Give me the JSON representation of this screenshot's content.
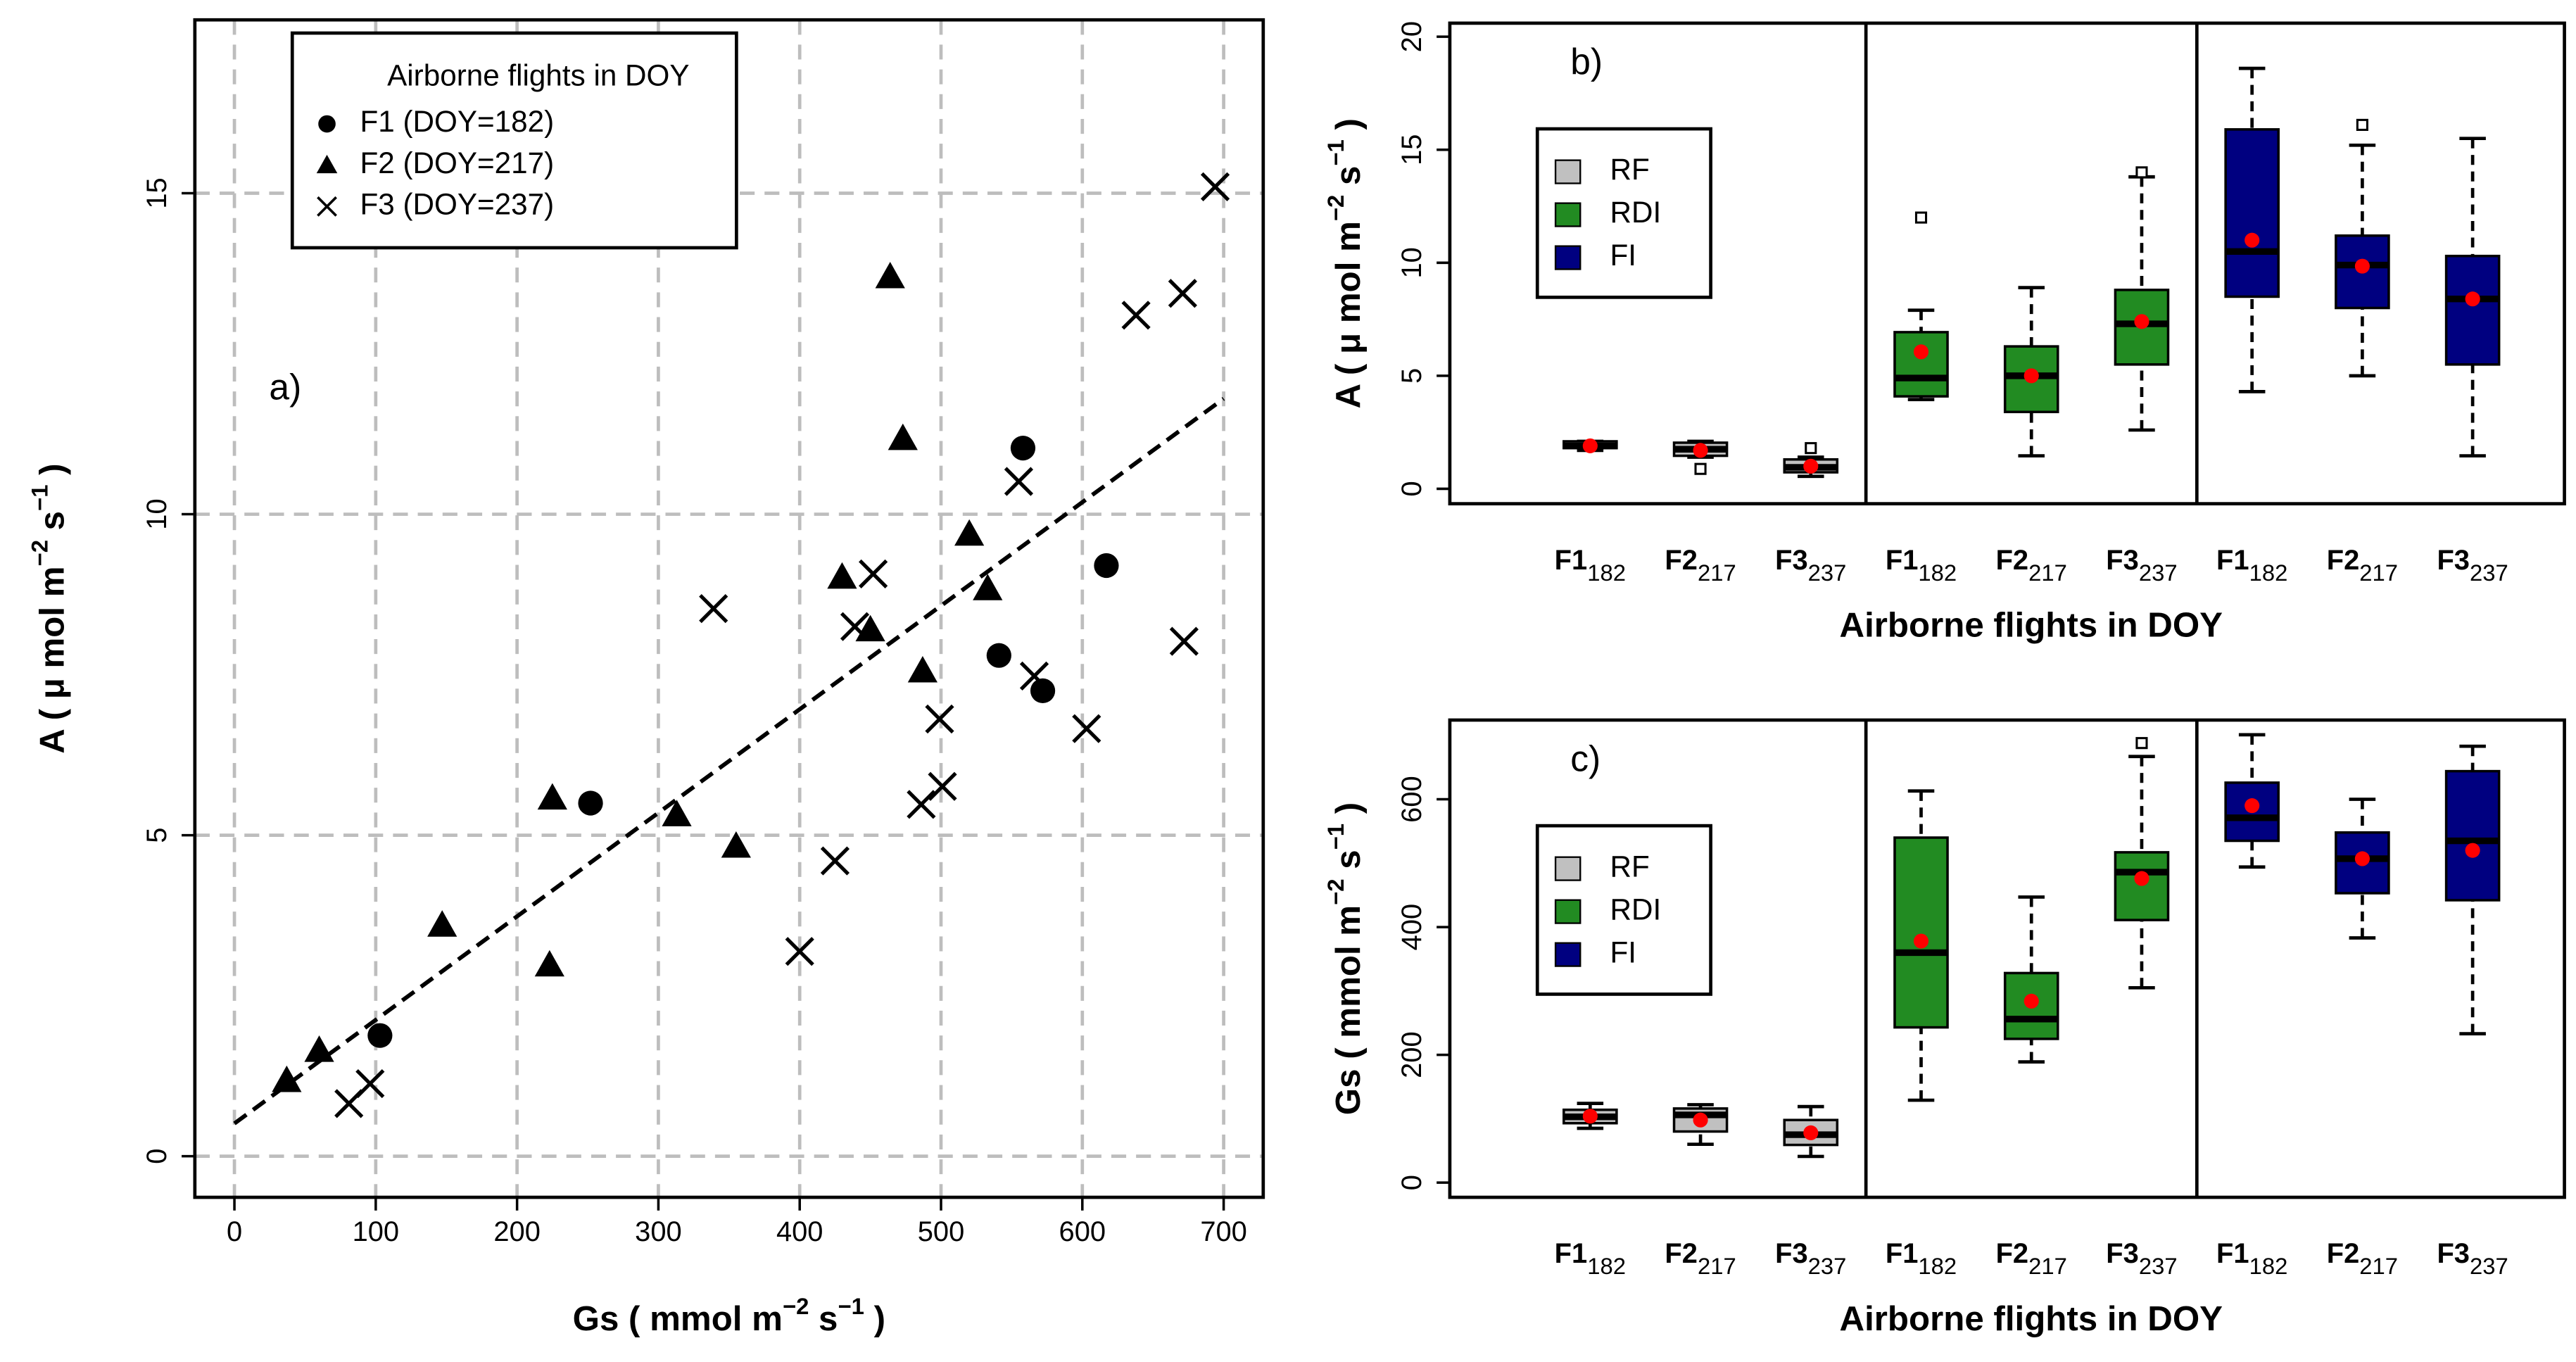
{
  "chart_data": [
    {
      "type": "scatter",
      "panel_label": "a)",
      "xlabel": [
        "Gs  ( mmol m",
        "−2",
        " s",
        "−1",
        " )"
      ],
      "ylabel": [
        "A  ( μ mol m",
        "−2",
        " s",
        "−1",
        " )"
      ],
      "xlim": [
        -28,
        728
      ],
      "ylim": [
        -0.64,
        17.7
      ],
      "xticks": [
        0,
        100,
        200,
        300,
        400,
        500,
        600,
        700
      ],
      "yticks": [
        0,
        5,
        10,
        15
      ],
      "grid": true,
      "color": "#000000",
      "legend": {
        "title": "Airborne flights in DOY",
        "corner": "upper left"
      },
      "series": [
        {
          "name": "F1 (DOY=182)",
          "marker": "circle",
          "x": [
            103,
            252,
            558,
            617,
            541,
            572
          ],
          "values": [
            1.88,
            5.5,
            11.03,
            9.2,
            7.8,
            7.25
          ]
        },
        {
          "name": "F2 (DOY=217)",
          "marker": "triangle",
          "x": [
            37,
            60,
            147,
            223,
            225,
            313,
            355,
            430,
            450,
            473,
            464,
            487,
            520,
            533
          ],
          "values": [
            1.18,
            1.65,
            3.6,
            2.98,
            5.58,
            5.32,
            4.83,
            9.02,
            8.2,
            11.18,
            13.7,
            7.56,
            9.69,
            8.84
          ]
        },
        {
          "name": "F3 (DOY=237)",
          "marker": "cross",
          "x": [
            81,
            96,
            339,
            452,
            439,
            400,
            425,
            486,
            501,
            499,
            555,
            566,
            603,
            638,
            671,
            672,
            694
          ],
          "values": [
            0.82,
            1.13,
            8.53,
            9.07,
            8.25,
            3.19,
            4.6,
            5.48,
            5.76,
            6.81,
            10.51,
            7.48,
            6.66,
            13.1,
            13.44,
            8.02,
            15.1
          ]
        }
      ],
      "trend_line": {
        "x": [
          0,
          700
        ],
        "values": [
          0.51,
          11.8
        ]
      }
    },
    {
      "type": "box",
      "panel_label": "b)",
      "xlabel": [
        "Airborne flights in DOY"
      ],
      "ylabel": [
        "A  ( μ mol m",
        "−2",
        " s",
        "−1",
        " )"
      ],
      "ylim": [
        -0.66,
        20.6
      ],
      "yticks": [
        0,
        5,
        10,
        15,
        20
      ],
      "categories": [
        "F1",
        "F2",
        "F3"
      ],
      "category_subs": [
        "182",
        "217",
        "237"
      ],
      "legend": {
        "corner": "upper left"
      },
      "series": [
        {
          "name": "RF",
          "color": "#c0c0c0",
          "boxes": [
            {
              "min": 1.7,
              "q1": 1.8,
              "median": 1.9,
              "q3": 2.1,
              "max": 2.1,
              "mean": 1.9,
              "outliers": []
            },
            {
              "min": 1.4,
              "q1": 1.46,
              "median": 1.75,
              "q3": 2.04,
              "max": 2.1,
              "mean": 1.7,
              "outliers": [
                0.88
              ]
            },
            {
              "min": 0.55,
              "q1": 0.73,
              "median": 0.95,
              "q3": 1.3,
              "max": 1.4,
              "mean": 1.0,
              "outliers": [
                1.8
              ]
            }
          ]
        },
        {
          "name": "RDI",
          "color": "#228b22",
          "boxes": [
            {
              "min": 3.95,
              "q1": 4.09,
              "median": 4.9,
              "q3": 6.93,
              "max": 7.9,
              "mean": 6.06,
              "outliers": [
                12.0
              ]
            },
            {
              "min": 1.46,
              "q1": 3.4,
              "median": 5.0,
              "q3": 6.3,
              "max": 8.9,
              "mean": 5.0,
              "outliers": []
            },
            {
              "min": 2.6,
              "q1": 5.5,
              "median": 7.3,
              "q3": 8.8,
              "max": 13.8,
              "mean": 7.4,
              "outliers": [
                14.0
              ]
            }
          ]
        },
        {
          "name": "FI",
          "color": "#000080",
          "boxes": [
            {
              "min": 4.3,
              "q1": 8.5,
              "median": 10.5,
              "q3": 15.9,
              "max": 18.6,
              "mean": 11.0,
              "outliers": []
            },
            {
              "min": 5.0,
              "q1": 8.0,
              "median": 9.9,
              "q3": 11.2,
              "max": 15.2,
              "mean": 9.85,
              "outliers": [
                16.1
              ]
            },
            {
              "min": 1.46,
              "q1": 5.5,
              "median": 8.4,
              "q3": 10.3,
              "max": 15.5,
              "mean": 8.4,
              "outliers": []
            }
          ]
        }
      ]
    },
    {
      "type": "box",
      "panel_label": "c)",
      "xlabel": [
        "Airborne flights in DOY"
      ],
      "ylabel": [
        "Gs  ( mmol m",
        "−2",
        " s",
        "−1",
        " )"
      ],
      "ylim": [
        -23,
        724
      ],
      "yticks": [
        0,
        200,
        400,
        600
      ],
      "categories": [
        "F1",
        "F2",
        "F3"
      ],
      "category_subs": [
        "182",
        "217",
        "237"
      ],
      "legend": {
        "corner": "upper left"
      },
      "series": [
        {
          "name": "RF",
          "color": "#c0c0c0",
          "boxes": [
            {
              "min": 85,
              "q1": 93,
              "median": 103,
              "q3": 114,
              "max": 124,
              "mean": 104,
              "outliers": []
            },
            {
              "min": 60,
              "q1": 80,
              "median": 106,
              "q3": 116,
              "max": 122,
              "mean": 98,
              "outliers": []
            },
            {
              "min": 41,
              "q1": 59,
              "median": 75,
              "q3": 98,
              "max": 119,
              "mean": 78,
              "outliers": []
            }
          ]
        },
        {
          "name": "RDI",
          "color": "#228b22",
          "boxes": [
            {
              "min": 129,
              "q1": 243,
              "median": 360,
              "q3": 540,
              "max": 613,
              "mean": 378,
              "outliers": []
            },
            {
              "min": 189,
              "q1": 225,
              "median": 256,
              "q3": 328,
              "max": 447,
              "mean": 284,
              "outliers": []
            },
            {
              "min": 305,
              "q1": 411,
              "median": 486,
              "q3": 517,
              "max": 667,
              "mean": 476,
              "outliers": [
                688
              ]
            }
          ]
        },
        {
          "name": "FI",
          "color": "#000080",
          "boxes": [
            {
              "min": 494,
              "q1": 535,
              "median": 571,
              "q3": 626,
              "max": 701,
              "mean": 590,
              "outliers": []
            },
            {
              "min": 383,
              "q1": 453,
              "median": 507,
              "q3": 548,
              "max": 600,
              "mean": 507,
              "outliers": []
            },
            {
              "min": 233,
              "q1": 442,
              "median": 535,
              "q3": 644,
              "max": 683,
              "mean": 520,
              "outliers": []
            }
          ]
        }
      ]
    }
  ]
}
